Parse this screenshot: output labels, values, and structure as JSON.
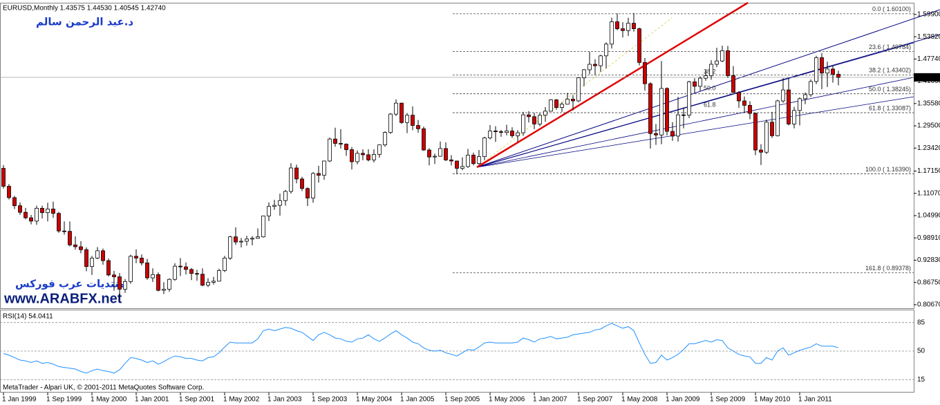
{
  "header": "EURUSD,Monthly  1.43575 1.44530 1.40545 1.42740",
  "author": "د.عبد الرحمن سالم",
  "forum": "منتديات عرب فوركس",
  "site": "www.ARABFX.net",
  "footer": "MetaTrader - Alpari UK, © 2001-2011 MetaQuotes Software Corp.",
  "chart_data": [
    {
      "type": "candlestick",
      "up_color": "#ffffff",
      "down_color": "#cc0000",
      "wick_color": "#000000",
      "xlim": [
        -0.625,
        164.625
      ],
      "xticks": [
        {
          "value": 0,
          "label": "1 Jan 1999"
        },
        {
          "value": 8,
          "label": "1 Sep 1999"
        },
        {
          "value": 16,
          "label": "1 May 2000"
        },
        {
          "value": 24,
          "label": "1 Jan 2001"
        },
        {
          "value": 32,
          "label": "1 Sep 2001"
        },
        {
          "value": 40,
          "label": "1 May 2002"
        },
        {
          "value": 48,
          "label": "1 Jan 2003"
        },
        {
          "value": 56,
          "label": "1 Sep 2003"
        },
        {
          "value": 64,
          "label": "1 May 2004"
        },
        {
          "value": 72,
          "label": "1 Jan 2005"
        },
        {
          "value": 80,
          "label": "1 Sep 2005"
        },
        {
          "value": 88,
          "label": "1 May 2006"
        },
        {
          "value": 96,
          "label": "1 Jan 2007"
        },
        {
          "value": 104,
          "label": "1 Sep 2007"
        },
        {
          "value": 112,
          "label": "1 May 2008"
        },
        {
          "value": 120,
          "label": "1 Jan 2009"
        },
        {
          "value": 128,
          "label": "1 Sep 2009"
        },
        {
          "value": 136,
          "label": "1 May 2010"
        },
        {
          "value": 144,
          "label": "1 Jan 2011"
        }
      ],
      "ylim": [
        0.799,
        1.629
      ],
      "yticks": [
        {
          "value": 1.599,
          "label": "1.59900"
        },
        {
          "value": 1.5382,
          "label": "1.53820"
        },
        {
          "value": 1.4774,
          "label": "1.47740"
        },
        {
          "value": 1.4166,
          "label": "1.41660"
        },
        {
          "value": 1.3558,
          "label": "1.35580"
        },
        {
          "value": 1.295,
          "label": "1.29500"
        },
        {
          "value": 1.2342,
          "label": "1.23420"
        },
        {
          "value": 1.1715,
          "label": "1.17150"
        },
        {
          "value": 1.1107,
          "label": "1.11070"
        },
        {
          "value": 1.0499,
          "label": "1.04990"
        },
        {
          "value": 0.9891,
          "label": "0.98910"
        },
        {
          "value": 0.9283,
          "label": "0.92830"
        },
        {
          "value": 0.8675,
          "label": "0.86750"
        },
        {
          "value": 0.8067,
          "label": "0.80670"
        }
      ],
      "current_price": {
        "value": 1.4274,
        "label": "1.42740"
      },
      "fibonacci": [
        {
          "value": 1.601,
          "label": "0.0 ( 1.60100)"
        },
        {
          "value": 1.49784,
          "label": "23.6 ( 1.49784)"
        },
        {
          "value": 1.43402,
          "label": "38.2 ( 1.43402)"
        },
        {
          "value": 1.38245,
          "label": "50.0 ( 1.38245)"
        },
        {
          "value": 1.33087,
          "label": "61.8 ( 1.33087)"
        },
        {
          "value": 1.1639,
          "label": "100.0 ( 1.16390)"
        },
        {
          "value": 0.89378,
          "label": "161.8 ( 0.89378)"
        }
      ],
      "fan_labels": [
        "38.2",
        "50.0",
        "61.8"
      ],
      "open": [
        1.179,
        1.13,
        1.099,
        1.077,
        1.059,
        1.044,
        1.035,
        1.07,
        1.058,
        1.068,
        1.056,
        1.008,
        1.007,
        0.97,
        0.965,
        0.957,
        0.911,
        0.934,
        0.954,
        0.927,
        0.888,
        0.883,
        0.849,
        0.87,
        0.939,
        0.934,
        0.921,
        0.88,
        0.889,
        0.846,
        0.849,
        0.876,
        0.912,
        0.91,
        0.903,
        0.892,
        0.89,
        0.86,
        0.868,
        0.871,
        0.9,
        0.934,
        0.992,
        0.978,
        0.98,
        0.986,
        0.988,
        0.992,
        1.049,
        1.075,
        1.078,
        1.091,
        1.116,
        1.18,
        1.15,
        1.124,
        1.098,
        1.165,
        1.16,
        1.199,
        1.259,
        1.247,
        1.245,
        1.23,
        1.197,
        1.22,
        1.216,
        1.202,
        1.217,
        1.243,
        1.277,
        1.327,
        1.357,
        1.304,
        1.324,
        1.296,
        1.287,
        1.229,
        1.21,
        1.212,
        1.233,
        1.202,
        1.199,
        1.179,
        1.184,
        1.215,
        1.192,
        1.211,
        1.262,
        1.281,
        1.279,
        1.277,
        1.281,
        1.268,
        1.276,
        1.325,
        1.32,
        1.3,
        1.324,
        1.335,
        1.366,
        1.345,
        1.354,
        1.368,
        1.363,
        1.426,
        1.448,
        1.463,
        1.459,
        1.486,
        1.518,
        1.579,
        1.56,
        1.555,
        1.575,
        1.56,
        1.468,
        1.41,
        1.274,
        1.27,
        1.397,
        1.28,
        1.267,
        1.325,
        1.324,
        1.415,
        1.403,
        1.425,
        1.432,
        1.463,
        1.472,
        1.5,
        1.432,
        1.386,
        1.363,
        1.351,
        1.329,
        1.229,
        1.223,
        1.305,
        1.268,
        1.363,
        1.393,
        1.3,
        1.337,
        1.369,
        1.38,
        1.416,
        1.481,
        1.439,
        1.45,
        1.43575
      ],
      "high": [
        1.188,
        1.136,
        1.104,
        1.086,
        1.071,
        1.052,
        1.077,
        1.077,
        1.085,
        1.088,
        1.06,
        1.034,
        1.034,
        0.993,
        0.98,
        0.963,
        0.94,
        0.964,
        0.96,
        0.933,
        0.899,
        0.893,
        0.877,
        0.943,
        0.958,
        0.944,
        0.932,
        0.906,
        0.895,
        0.868,
        0.879,
        0.92,
        0.934,
        0.922,
        0.907,
        0.902,
        0.906,
        0.879,
        0.883,
        0.905,
        0.94,
        0.995,
        1.018,
        0.989,
        0.995,
        0.994,
        1.015,
        1.05,
        1.086,
        1.093,
        1.11,
        1.12,
        1.193,
        1.189,
        1.156,
        1.127,
        1.169,
        1.186,
        1.2,
        1.263,
        1.29,
        1.286,
        1.247,
        1.237,
        1.228,
        1.231,
        1.231,
        1.231,
        1.244,
        1.28,
        1.33,
        1.367,
        1.358,
        1.33,
        1.348,
        1.311,
        1.293,
        1.234,
        1.219,
        1.252,
        1.25,
        1.215,
        1.2,
        1.209,
        1.232,
        1.222,
        1.229,
        1.265,
        1.297,
        1.294,
        1.284,
        1.298,
        1.291,
        1.283,
        1.333,
        1.335,
        1.33,
        1.329,
        1.346,
        1.368,
        1.368,
        1.36,
        1.385,
        1.379,
        1.427,
        1.45,
        1.497,
        1.477,
        1.489,
        1.523,
        1.59,
        1.602,
        1.578,
        1.59,
        1.603,
        1.563,
        1.48,
        1.414,
        1.3,
        1.472,
        1.4,
        1.305,
        1.374,
        1.345,
        1.418,
        1.425,
        1.43,
        1.447,
        1.474,
        1.508,
        1.514,
        1.513,
        1.458,
        1.39,
        1.375,
        1.362,
        1.331,
        1.245,
        1.312,
        1.333,
        1.366,
        1.425,
        1.424,
        1.347,
        1.373,
        1.386,
        1.422,
        1.486,
        1.494,
        1.47,
        1.458,
        1.4453
      ],
      "low": [
        1.124,
        1.094,
        1.068,
        1.052,
        1.04,
        1.026,
        1.025,
        1.042,
        1.034,
        1.044,
        1.003,
        0.998,
        0.966,
        0.957,
        0.947,
        0.898,
        0.888,
        0.931,
        0.916,
        0.884,
        0.845,
        0.823,
        0.839,
        0.864,
        0.92,
        0.914,
        0.875,
        0.869,
        0.843,
        0.836,
        0.842,
        0.872,
        0.885,
        0.889,
        0.874,
        0.872,
        0.857,
        0.855,
        0.862,
        0.87,
        0.896,
        0.929,
        0.97,
        0.963,
        0.968,
        0.969,
        0.987,
        0.99,
        1.035,
        1.066,
        1.05,
        1.077,
        1.11,
        1.138,
        1.117,
        1.076,
        1.085,
        1.14,
        1.148,
        1.196,
        1.238,
        1.233,
        1.213,
        1.176,
        1.19,
        1.201,
        1.198,
        1.195,
        1.208,
        1.238,
        1.273,
        1.322,
        1.3,
        1.275,
        1.283,
        1.276,
        1.227,
        1.187,
        1.191,
        1.211,
        1.199,
        1.187,
        1.164,
        1.174,
        1.18,
        1.187,
        1.188,
        1.201,
        1.258,
        1.251,
        1.265,
        1.269,
        1.262,
        1.251,
        1.268,
        1.304,
        1.286,
        1.294,
        1.306,
        1.334,
        1.339,
        1.333,
        1.353,
        1.337,
        1.36,
        1.403,
        1.436,
        1.434,
        1.442,
        1.452,
        1.506,
        1.556,
        1.536,
        1.54,
        1.552,
        1.46,
        1.391,
        1.233,
        1.243,
        1.245,
        1.269,
        1.254,
        1.252,
        1.288,
        1.316,
        1.385,
        1.39,
        1.418,
        1.421,
        1.455,
        1.469,
        1.426,
        1.385,
        1.344,
        1.33,
        1.313,
        1.215,
        1.188,
        1.218,
        1.262,
        1.266,
        1.358,
        1.296,
        1.288,
        1.296,
        1.354,
        1.374,
        1.409,
        1.395,
        1.401,
        1.413,
        1.40545
      ],
      "close": [
        1.13,
        1.099,
        1.077,
        1.059,
        1.044,
        1.035,
        1.07,
        1.058,
        1.068,
        1.056,
        1.008,
        1.007,
        0.97,
        0.965,
        0.957,
        0.911,
        0.934,
        0.954,
        0.927,
        0.888,
        0.883,
        0.849,
        0.87,
        0.939,
        0.934,
        0.921,
        0.88,
        0.889,
        0.846,
        0.849,
        0.876,
        0.912,
        0.91,
        0.903,
        0.892,
        0.89,
        0.86,
        0.868,
        0.871,
        0.9,
        0.934,
        0.992,
        0.978,
        0.98,
        0.986,
        0.988,
        0.992,
        1.049,
        1.075,
        1.078,
        1.091,
        1.116,
        1.18,
        1.15,
        1.124,
        1.098,
        1.165,
        1.16,
        1.199,
        1.259,
        1.247,
        1.245,
        1.23,
        1.197,
        1.22,
        1.216,
        1.202,
        1.217,
        1.243,
        1.277,
        1.327,
        1.357,
        1.304,
        1.324,
        1.296,
        1.287,
        1.229,
        1.21,
        1.212,
        1.233,
        1.202,
        1.199,
        1.179,
        1.184,
        1.215,
        1.192,
        1.211,
        1.262,
        1.281,
        1.279,
        1.277,
        1.281,
        1.268,
        1.276,
        1.325,
        1.32,
        1.3,
        1.324,
        1.335,
        1.366,
        1.345,
        1.354,
        1.368,
        1.363,
        1.426,
        1.448,
        1.463,
        1.459,
        1.486,
        1.518,
        1.579,
        1.56,
        1.555,
        1.575,
        1.56,
        1.468,
        1.41,
        1.274,
        1.27,
        1.397,
        1.28,
        1.267,
        1.325,
        1.324,
        1.415,
        1.403,
        1.425,
        1.432,
        1.463,
        1.472,
        1.5,
        1.432,
        1.386,
        1.363,
        1.351,
        1.329,
        1.229,
        1.223,
        1.305,
        1.268,
        1.363,
        1.393,
        1.3,
        1.337,
        1.369,
        1.38,
        1.416,
        1.481,
        1.439,
        1.45,
        1.43575,
        1.4274
      ]
    },
    {
      "type": "line",
      "title": "RSI(14) 54.0411",
      "color": "#1e90ff",
      "xlim": [
        -0.625,
        164.625
      ],
      "ylim": [
        0,
        100
      ],
      "yticks": [
        85,
        50,
        15
      ],
      "values": [
        47,
        45,
        42,
        39,
        38,
        36,
        38,
        35,
        36,
        34,
        31,
        30,
        29,
        28,
        25,
        23,
        26,
        28,
        26,
        25,
        23,
        27,
        35,
        42,
        41,
        39,
        36,
        38,
        34,
        37,
        41,
        44,
        43,
        41,
        41,
        39,
        38,
        42,
        43,
        48,
        55,
        61,
        60,
        60,
        60,
        60,
        65,
        75,
        77,
        75,
        77,
        79,
        78,
        75,
        73,
        68,
        63,
        70,
        73,
        70,
        66,
        65,
        62,
        61,
        65,
        66,
        70,
        65,
        62,
        66,
        71,
        75,
        70,
        66,
        61,
        59,
        54,
        51,
        50,
        51,
        48,
        46,
        44,
        48,
        52,
        51,
        55,
        60,
        61,
        60,
        60,
        60,
        60,
        61,
        66,
        64,
        61,
        65,
        66,
        68,
        65,
        66,
        67,
        70,
        71,
        72,
        73,
        76,
        77,
        81,
        84,
        81,
        78,
        80,
        75,
        60,
        46,
        35,
        36,
        45,
        39,
        42,
        46,
        52,
        59,
        59,
        61,
        63,
        61,
        64,
        63,
        54,
        50,
        46,
        44,
        43,
        35,
        35,
        42,
        39,
        50,
        54,
        45,
        48,
        51,
        53,
        55,
        59,
        56,
        56,
        56,
        54.0411
      ]
    }
  ]
}
